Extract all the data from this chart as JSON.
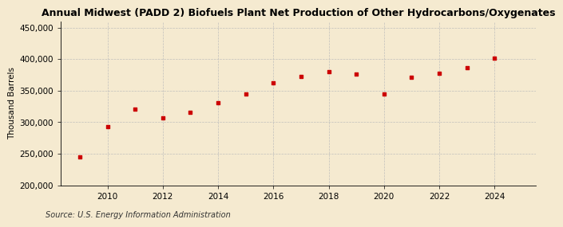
{
  "title": "Annual Midwest (PADD 2) Biofuels Plant Net Production of Other Hydrocarbons/Oxygenates",
  "ylabel": "Thousand Barrels",
  "source": "Source: U.S. Energy Information Administration",
  "years": [
    2009,
    2010,
    2011,
    2012,
    2013,
    2014,
    2015,
    2016,
    2017,
    2018,
    2019,
    2020,
    2021,
    2022,
    2023,
    2024
  ],
  "values": [
    245000,
    293000,
    321000,
    307000,
    315000,
    331000,
    344000,
    362000,
    372000,
    380000,
    376000,
    344000,
    371000,
    378000,
    386000,
    401000
  ],
  "marker_color": "#cc0000",
  "marker": "s",
  "marker_size": 3.5,
  "background_color": "#f5ead0",
  "grid_color": "#bbbbbb",
  "ylim": [
    200000,
    460000
  ],
  "yticks": [
    200000,
    250000,
    300000,
    350000,
    400000,
    450000
  ],
  "xticks": [
    2010,
    2012,
    2014,
    2016,
    2018,
    2020,
    2022,
    2024
  ],
  "xlim": [
    2008.3,
    2025.5
  ],
  "title_fontsize": 9,
  "label_fontsize": 7.5,
  "tick_fontsize": 7.5,
  "source_fontsize": 7
}
